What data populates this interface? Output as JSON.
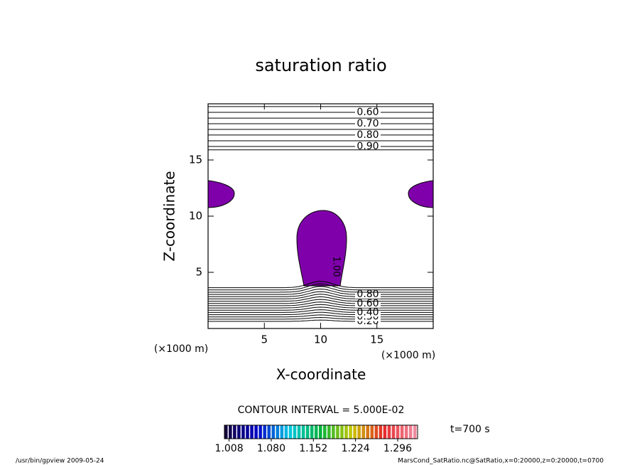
{
  "chart_data": {
    "type": "contour",
    "title": "saturation ratio",
    "xlabel": "X-coordinate",
    "ylabel": "Z-coordinate",
    "xunit": "(×1000 m)",
    "yunit": "(×1000 m)",
    "xlim": [
      0,
      20
    ],
    "ylim": [
      0,
      20
    ],
    "xticks": [
      5,
      10,
      15
    ],
    "yticks": [
      5,
      10,
      15
    ],
    "contour_interval": "CONTOUR INTERVAL = 5.000E-02",
    "time": "t=700 s",
    "shaded_contour": {
      "level": {
        "value": 1.0,
        "label": "1.00"
      },
      "color": "#7f00aa"
    },
    "contours": [
      {
        "level": 0.55,
        "z": 19.75
      },
      {
        "level": {
          "value": 0.6,
          "label": "0.60"
        },
        "z": 19.24
      },
      {
        "level": 0.65,
        "z": 18.73
      },
      {
        "level": {
          "value": 0.7,
          "label": "0.70"
        },
        "z": 18.23
      },
      {
        "level": 0.75,
        "z": 17.72
      },
      {
        "level": {
          "value": 0.8,
          "label": "0.80"
        },
        "z": 17.22
      },
      {
        "level": 0.85,
        "z": 16.71
      },
      {
        "level": {
          "value": 0.9,
          "label": "0.90"
        },
        "z": 16.2
      },
      {
        "level": 0.95,
        "z": 15.9
      },
      {
        "level": {
          "value": 0.2,
          "label": "0.20"
        },
        "z": 0.63
      },
      {
        "level": 0.25,
        "z": 0.83
      },
      {
        "level": {
          "value": 0.3,
          "label": "0.30"
        },
        "z": 1.03
      },
      {
        "level": 0.35,
        "z": 1.23
      },
      {
        "level": {
          "value": 0.4,
          "label": "0.40"
        },
        "z": 1.43
      },
      {
        "level": 0.45,
        "z": 1.63
      },
      {
        "level": 0.5,
        "z": 1.83
      },
      {
        "level": 0.55,
        "z": 2.03
      },
      {
        "level": {
          "value": 0.6,
          "label": "0.60"
        },
        "z": 2.23
      },
      {
        "level": 0.65,
        "z": 2.43
      },
      {
        "level": 0.7,
        "z": 2.63
      },
      {
        "level": 0.75,
        "z": 2.83
      },
      {
        "level": {
          "value": 0.8,
          "label": "0.80"
        },
        "z": 3.03
      },
      {
        "level": 0.85,
        "z": 3.23
      },
      {
        "level": 0.9,
        "z": 3.43
      },
      {
        "level": 0.95,
        "z": 3.63
      }
    ],
    "colorbar": {
      "clim": [
        1.0,
        1.33
      ],
      "ticks": [
        1.008,
        {
          "value": 1.08,
          "label": "1.080"
        },
        1.152,
        1.224,
        1.296
      ]
    },
    "footer_left": "/usr/bin/gpview  2009-05-24",
    "footer_right": "MarsCond_SatRatio.nc@SatRatio,x=0:20000,z=0:20000,t=0700"
  }
}
